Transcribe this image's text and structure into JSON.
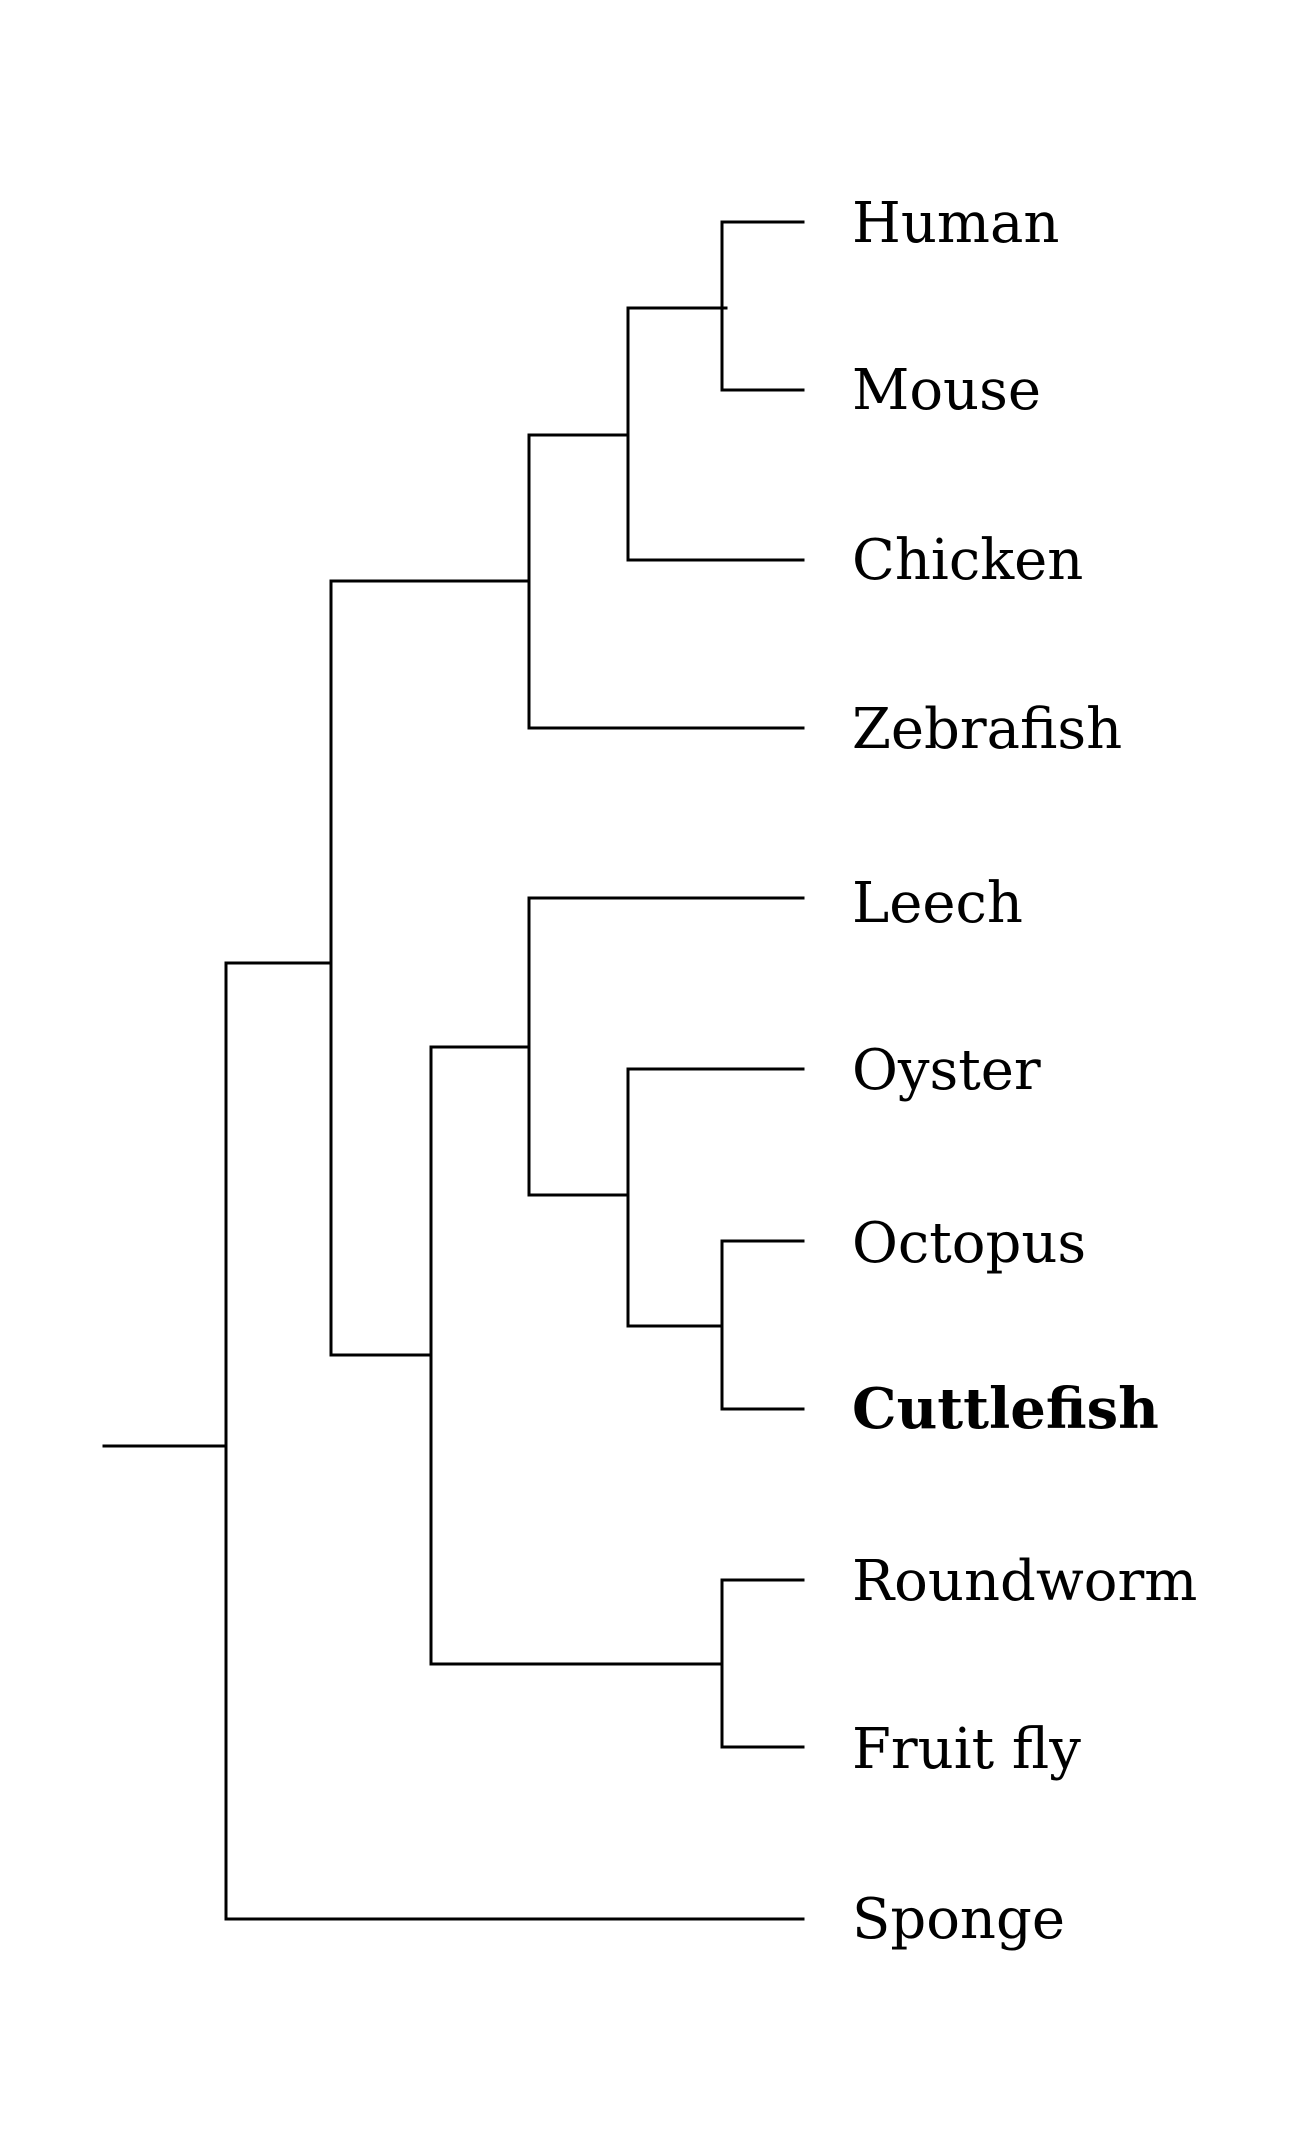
{
  "diagram": {
    "type": "phylogenetic-tree",
    "highlight_color": "#000000",
    "taxa": [
      {
        "id": "human",
        "label": "Human",
        "bold": false
      },
      {
        "id": "mouse",
        "label": "Mouse",
        "bold": false
      },
      {
        "id": "chicken",
        "label": "Chicken",
        "bold": false
      },
      {
        "id": "zebrafish",
        "label": "Zebrafish",
        "bold": false
      },
      {
        "id": "leech",
        "label": "Leech",
        "bold": false
      },
      {
        "id": "oyster",
        "label": "Oyster",
        "bold": false
      },
      {
        "id": "octopus",
        "label": "Octopus",
        "bold": false
      },
      {
        "id": "cuttlefish",
        "label": "Cuttlefish",
        "bold": true
      },
      {
        "id": "roundworm",
        "label": "Roundworm",
        "bold": false
      },
      {
        "id": "fruit-fly",
        "label": "Fruit fly",
        "bold": false
      },
      {
        "id": "sponge",
        "label": "Sponge",
        "bold": false
      }
    ],
    "topology": "(((((Human,Mouse),Chicken),Zebrafish),((Leech,(Oyster,(Octopus,Cuttlefish))),(Roundworm,Fruit fly))),Sponge)"
  }
}
